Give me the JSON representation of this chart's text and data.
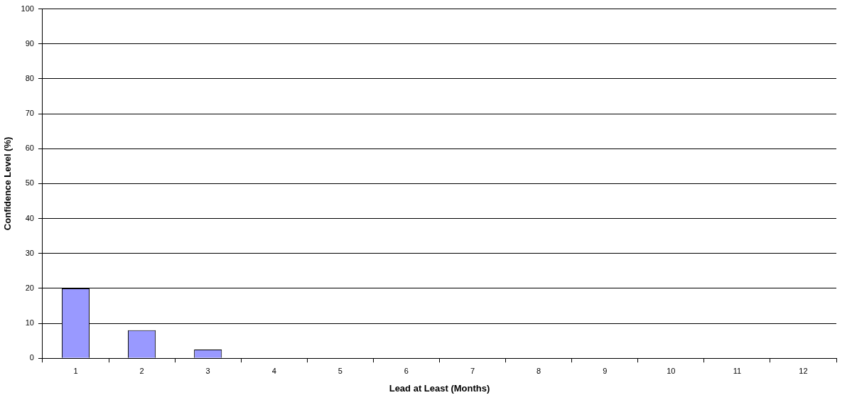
{
  "chart_data": {
    "type": "bar",
    "xlabel": "Lead at Least (Months)",
    "ylabel": "Confidence Level (%)",
    "categories": [
      "1",
      "2",
      "3",
      "4",
      "5",
      "6",
      "7",
      "8",
      "9",
      "10",
      "11",
      "12"
    ],
    "values": [
      20,
      8,
      2.5,
      0,
      0,
      0,
      0,
      0,
      0,
      0,
      0,
      0
    ],
    "color": "#9999ff",
    "ylim": [
      0,
      100
    ],
    "yticks": [
      0,
      10,
      20,
      30,
      40,
      50,
      60,
      70,
      80,
      90,
      100
    ],
    "grid": "y",
    "legend": false
  }
}
